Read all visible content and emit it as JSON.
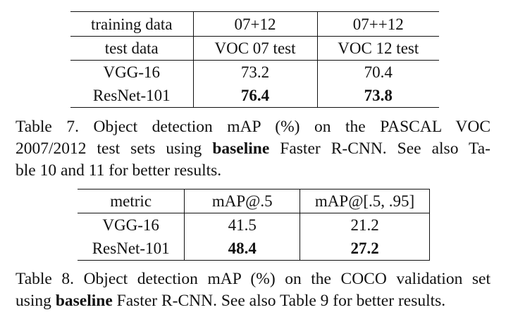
{
  "table7": {
    "header": [
      "training data",
      "07+12",
      "07++12"
    ],
    "subheader": [
      "test data",
      "VOC 07 test",
      "VOC 12 test"
    ],
    "rows": [
      {
        "model": "VGG-16",
        "values": [
          "73.2",
          "70.4"
        ]
      },
      {
        "model": "ResNet-101",
        "values": [
          "76.4",
          "73.8"
        ]
      }
    ],
    "caption": {
      "line1": "Table 7. Object detection mAP (%) on the PASCAL VOC",
      "line2_pre": "2007/2012 test sets using ",
      "line2_bold": "baseline",
      "line2_post": " Faster R-CNN. See also Ta-",
      "line3": "ble 10 and 11 for better results."
    }
  },
  "table8": {
    "header": [
      "metric",
      "mAP@.5",
      "mAP@[.5, .95]"
    ],
    "rows": [
      {
        "model": "VGG-16",
        "values": [
          "41.5",
          "21.2"
        ]
      },
      {
        "model": "ResNet-101",
        "values": [
          "48.4",
          "27.2"
        ]
      }
    ],
    "caption": {
      "line1": "Table 8. Object detection mAP (%) on the COCO validation set",
      "line2_pre": "using ",
      "line2_bold": "baseline",
      "line2_post": " Faster R-CNN. See also Table 9 for better results."
    }
  }
}
